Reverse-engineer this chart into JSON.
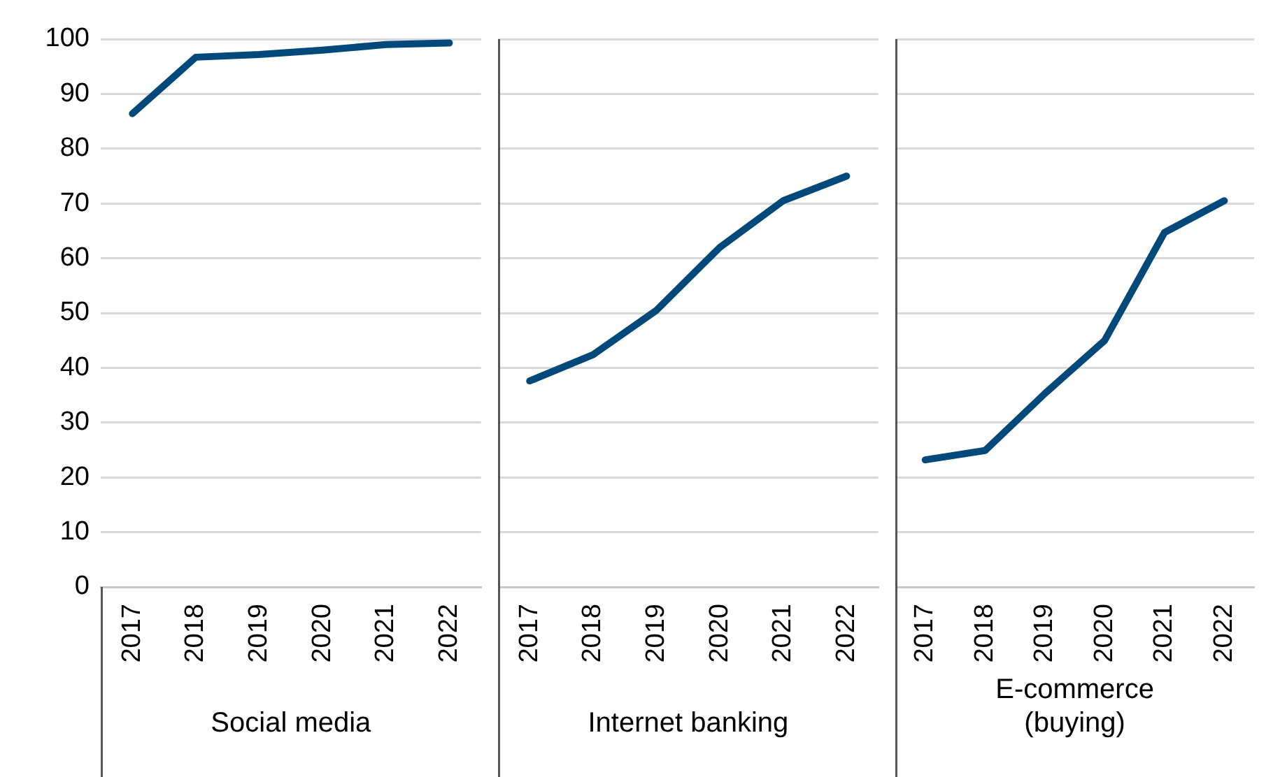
{
  "chart_data": [
    {
      "type": "line",
      "xlabel": "Social media",
      "categories": [
        "2017",
        "2018",
        "2019",
        "2020",
        "2021",
        "2022"
      ],
      "series": [
        {
          "color": "#00497a",
          "values": [
            86.4,
            96.7,
            97.2,
            98,
            99,
            99.3
          ]
        }
      ],
      "ylim": [
        0,
        100
      ],
      "yticks": [
        0,
        10,
        20,
        30,
        40,
        50,
        60,
        70,
        80,
        90,
        100
      ],
      "grid": "y",
      "legend": false,
      "marker": "none"
    },
    {
      "type": "line",
      "xlabel": "Internet banking",
      "categories": [
        "2017",
        "2018",
        "2019",
        "2020",
        "2021",
        "2022"
      ],
      "series": [
        {
          "color": "#00497a",
          "values": [
            37.6,
            42.4,
            50.5,
            62,
            70.5,
            75
          ]
        }
      ],
      "ylim": [
        0,
        100
      ],
      "yticks": [
        0,
        10,
        20,
        30,
        40,
        50,
        60,
        70,
        80,
        90,
        100
      ],
      "grid": "y",
      "legend": false,
      "marker": "none",
      "tick_labels": "x"
    },
    {
      "type": "line",
      "xlabel": "E-commerce (buying)",
      "categories": [
        "2017",
        "2018",
        "2019",
        "2020",
        "2021",
        "2022"
      ],
      "series": [
        {
          "color": "#00497a",
          "values": [
            23.2,
            24.9,
            35.3,
            45,
            64.7,
            70.5
          ]
        }
      ],
      "ylim": [
        0,
        100
      ],
      "yticks": [
        0,
        10,
        20,
        30,
        40,
        50,
        60,
        70,
        80,
        90,
        100
      ],
      "grid": "y",
      "legend": false,
      "marker": "none",
      "tick_labels": "x"
    }
  ]
}
